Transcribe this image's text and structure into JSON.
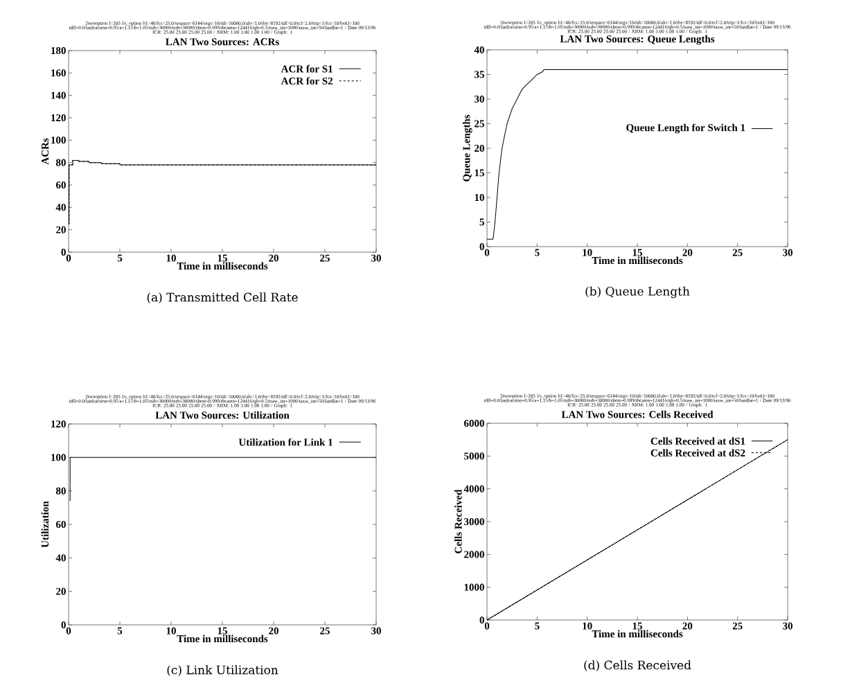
{
  "chart_data": [
    {
      "type": "step",
      "title": "LAN Two Sources: ACRs",
      "xlabel": "Time in milliseconds",
      "ylabel": "ACRs",
      "xlim": [
        0,
        30
      ],
      "ylim": [
        0,
        180
      ],
      "xticks": [
        0,
        5,
        10,
        15,
        20,
        25,
        30
      ],
      "yticks": [
        0,
        20,
        40,
        60,
        80,
        100,
        120,
        140,
        160,
        180
      ],
      "legend": "top right",
      "series": [
        {
          "name": "ACR for S1",
          "color": "#000000",
          "line_style": "solid",
          "x": [
            0,
            0.05,
            0.4,
            1.0,
            2.0,
            3.2,
            5.0,
            30
          ],
          "values": [
            25,
            78,
            82,
            81,
            80,
            79,
            78,
            78
          ]
        },
        {
          "name": "ACR for S2",
          "color": "#000000",
          "line_style": "dashed",
          "x": [
            0,
            0.05,
            0.4,
            1.0,
            2.0,
            3.2,
            5.0,
            30
          ],
          "values": [
            25,
            78,
            82,
            81,
            80,
            79,
            78,
            78
          ]
        }
      ],
      "annotations": [
        "2twooption l=205 l/s_option b1=46/fcs=25.0/sespace=6144/segs=16/tdt=10000.0/alo=1.0/tbe=8192/tdf=0.0/tcf=2.0/trtp=1/fcs=10/bstO=100",
        "tdfl=0.0/lanfraction=0.95/a=1.15/b=1.05/tsib=30000/tsrb=30000/shost=0.999/tbcaten=124416/qlt=0.5/tsaw_int=1000/taxw_int=50/landlat=1 / Date 09/13/96",
        "ICR: 25.00 25.00 25.00 25.00 / XRM: 1.00 1.00 1.00 1.00 / Graph: 1",
        "(a) Transmitted Cell Rate"
      ]
    },
    {
      "type": "line",
      "title": "LAN Two Sources: Queue Lengths",
      "xlabel": "Time in milliseconds",
      "ylabel": "Queue Lengths",
      "xlim": [
        0,
        30
      ],
      "ylim": [
        0,
        40
      ],
      "xticks": [
        0,
        5,
        10,
        15,
        20,
        25,
        30
      ],
      "yticks": [
        0,
        5,
        10,
        15,
        20,
        25,
        30,
        35,
        40
      ],
      "legend": "right",
      "series": [
        {
          "name": "Queue Length for Switch 1",
          "color": "#000000",
          "line_style": "solid",
          "x": [
            0,
            0.6,
            0.8,
            1.0,
            1.2,
            1.5,
            1.8,
            2.0,
            2.5,
            3.0,
            3.5,
            4.0,
            4.5,
            5.0,
            5.5,
            5.7,
            30
          ],
          "values": [
            1.5,
            1.5,
            5,
            10,
            15,
            20,
            23,
            25,
            28,
            30,
            32,
            33,
            34,
            35,
            35.5,
            36,
            36
          ]
        }
      ],
      "annotations": [
        "2twooption l=205 l/s_option b1=46/fcs=25.0/sespace=6144/segs=16/tdt=10000.0/alo=1.0/tbe=8192/tdf=0.0/tcf=2.0/trtp=1/fcs=10/bstO=100",
        "tdfl=0.0/lanfraction=0.95/a=1.15/b=1.05/tsib=30000/tsrb=30000/shost=0.999/tbcaten=124416/qlt=0.5/tsaw_int=1000/taxw_int=50/landlat=1 / Date 09/13/96",
        "ICR: 25.00 25.00 25.00 25.00 / XRM: 1.00 1.00 1.00 1.00 / Graph: 1",
        "(b) Queue Length"
      ]
    },
    {
      "type": "line",
      "title": "LAN Two Sources: Utilization",
      "xlabel": "Time in milliseconds",
      "ylabel": "Utilization",
      "xlim": [
        0,
        30
      ],
      "ylim": [
        0,
        120
      ],
      "xticks": [
        0,
        5,
        10,
        15,
        20,
        25,
        30
      ],
      "yticks": [
        0,
        20,
        40,
        60,
        80,
        100,
        120
      ],
      "legend": "top right",
      "series": [
        {
          "name": "Utilization for Link 1",
          "color": "#000000",
          "line_style": "solid",
          "x": [
            0.15,
            0.15,
            30
          ],
          "values": [
            74,
            100,
            100
          ]
        }
      ],
      "annotations": [
        "2twooption l=205 l/s_option b1=46/fcs=25.0/sespace=6144/segs=16/tdt=10000.0/alo=1.0/tbe=8192/tdf=0.0/tcf=2.0/trtp=1/fcs=10/bstO=100",
        "tdfl=0.0/lanfraction=0.95/a=1.15/b=1.05/tsib=30000/tsrb=30000/shost=0.999/tbcaten=124416/qlt=0.5/tsaw_int=1000/taxw_int=50/landlat=1 / Date 09/13/96",
        "ICR: 25.00 25.00 25.00 25.00 / XRM: 1.00 1.00 1.00 1.00 / Graph: 1",
        "(c) Link Utilization"
      ]
    },
    {
      "type": "line",
      "title": "LAN Two Sources: Cells Received",
      "xlabel": "Time in milliseconds",
      "ylabel": "Cells Received",
      "xlim": [
        0,
        30
      ],
      "ylim": [
        0,
        6000
      ],
      "xticks": [
        0,
        5,
        10,
        15,
        20,
        25,
        30
      ],
      "yticks": [
        0,
        1000,
        2000,
        3000,
        4000,
        5000,
        6000
      ],
      "legend": "top right",
      "series": [
        {
          "name": "Cells Received at dS1",
          "color": "#000000",
          "line_style": "solid",
          "x": [
            0,
            30
          ],
          "values": [
            0,
            5500
          ]
        },
        {
          "name": "Cells Received at dS2",
          "color": "#000000",
          "line_style": "dashed",
          "x": [
            0,
            30
          ],
          "values": [
            0,
            5500
          ]
        }
      ],
      "annotations": [
        "2twooption l=205 l/s_option b1=46/fcs=25.0/sespace=6144/segs=16/tdt=10000.0/alo=1.0/tbe=8192/tdf=0.0/tcf=2.0/trtp=1/fcs=10/bstO=100",
        "tdfl=0.0/lanfraction=0.95/a=1.15/b=1.05/tsib=30000/tsrb=30000/shost=0.999/tbcaten=124416/qlt=0.5/tsaw_int=1000/taxw_int=50/landlat=1 / Date 09/13/96",
        "ICR: 25.00 25.00 25.00 25.00 / XRM: 1.00 1.00 1.00 1.00 / Graph: 1",
        "(d) Cells Received"
      ]
    }
  ]
}
